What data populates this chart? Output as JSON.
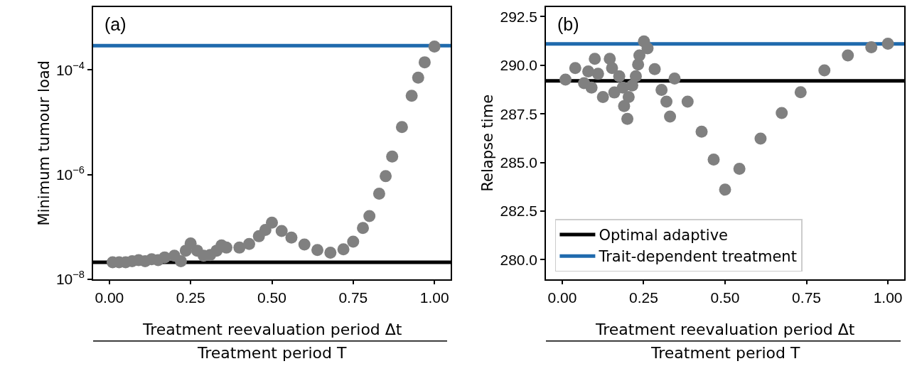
{
  "chart_data": [
    {
      "type": "scatter",
      "title": "(a)",
      "ylabel": "Minimum tumour load",
      "xlabel": "Treatment reevaluation period Δt\nTreatment period T",
      "log": "y",
      "marker": "circle",
      "legend": false,
      "x": [
        0.01,
        0.03,
        0.05,
        0.07,
        0.09,
        0.11,
        0.13,
        0.15,
        0.17,
        0.2,
        0.22,
        0.235,
        0.25,
        0.27,
        0.29,
        0.31,
        0.33,
        0.345,
        0.36,
        0.4,
        0.43,
        0.46,
        0.48,
        0.5,
        0.53,
        0.56,
        0.6,
        0.64,
        0.68,
        0.72,
        0.75,
        0.78,
        0.8,
        0.83,
        0.85,
        0.87,
        0.9,
        0.93,
        0.95,
        0.97,
        1.0
      ],
      "series": [
        {
          "color": "#808080",
          "values": [
            2.1e-08,
            2.1e-08,
            2.1e-08,
            2.2e-08,
            2.3e-08,
            2.2e-08,
            2.4e-08,
            2.3e-08,
            2.6e-08,
            2.8e-08,
            2.2e-08,
            3.5e-08,
            4.8e-08,
            3.5e-08,
            2.8e-08,
            2.9e-08,
            3.5e-08,
            4.4e-08,
            4e-08,
            4e-08,
            4.7e-08,
            6.6e-08,
            8.7e-08,
            1.2e-07,
            8.3e-08,
            6.2e-08,
            4.6e-08,
            3.6e-08,
            3.2e-08,
            3.7e-08,
            5.2e-08,
            9.5e-08,
            1.6e-07,
            4.3e-07,
            9.3e-07,
            2.2e-06,
            8.1e-06,
            3.2e-05,
            7.1e-05,
            0.00014,
            0.00028
          ]
        }
      ],
      "ref_lines": [
        {
          "axis": "y",
          "value": 2.1e-08,
          "color": "#000000"
        },
        {
          "axis": "y",
          "value": 0.00029,
          "color": "#1f6aad"
        }
      ],
      "xlim": [
        -0.05,
        1.05
      ],
      "xticks": [
        {
          "value": 0,
          "label": "0.00"
        },
        {
          "value": 0.25,
          "label": "0.25"
        },
        {
          "value": 0.5,
          "label": "0.50"
        },
        {
          "value": 0.75,
          "label": "0.75"
        },
        {
          "value": 1,
          "label": "1.00"
        }
      ],
      "ylim": [
        1e-08,
        0.0016
      ],
      "yticks": [
        {
          "value": 1e-08,
          "label": "10$^{−8}$"
        },
        {
          "value": 1e-06,
          "label": "10$^{−6}$"
        },
        {
          "value": 0.0001,
          "label": "10$^{−4}$"
        }
      ]
    },
    {
      "type": "scatter",
      "title": "(b)",
      "ylabel": "Relapse time",
      "xlabel": "Treatment reevaluation period Δt\nTreatment period T",
      "marker": "circle",
      "legend": "bottom left",
      "x": [
        0.01,
        0.04,
        0.067,
        0.08,
        0.09,
        0.1,
        0.11,
        0.125,
        0.146,
        0.153,
        0.16,
        0.175,
        0.186,
        0.19,
        0.2,
        0.204,
        0.215,
        0.226,
        0.233,
        0.237,
        0.251,
        0.262,
        0.284,
        0.305,
        0.32,
        0.331,
        0.345,
        0.385,
        0.428,
        0.465,
        0.5,
        0.544,
        0.609,
        0.674,
        0.732,
        0.805,
        0.877,
        0.949,
        1.0
      ],
      "series": [
        {
          "color": "#808080",
          "values": [
            289.26,
            289.86,
            289.08,
            289.68,
            288.85,
            290.33,
            289.56,
            288.37,
            290.33,
            289.86,
            288.6,
            289.44,
            288.85,
            287.9,
            287.24,
            288.37,
            288.96,
            289.44,
            290.04,
            290.51,
            291.23,
            290.87,
            289.8,
            288.73,
            288.13,
            287.36,
            289.32,
            288.13,
            286.58,
            285.15,
            283.6,
            284.67,
            286.23,
            287.54,
            288.61,
            289.74,
            290.51,
            290.93,
            291.11
          ]
        }
      ],
      "ref_lines": [
        {
          "axis": "y",
          "value": 289.2,
          "color": "#000000",
          "label": "Optimal adaptive"
        },
        {
          "axis": "y",
          "value": 291.1,
          "color": "#1f6aad",
          "label": "Trait-dependent treatment"
        }
      ],
      "xlim": [
        -0.05,
        1.05
      ],
      "xticks": [
        {
          "value": 0,
          "label": "0.00"
        },
        {
          "value": 0.25,
          "label": "0.25"
        },
        {
          "value": 0.5,
          "label": "0.50"
        },
        {
          "value": 0.75,
          "label": "0.75"
        },
        {
          "value": 1,
          "label": "1.00"
        }
      ],
      "ylim": [
        279.0,
        293.0
      ],
      "yticks": [
        {
          "value": 280,
          "label": "280.0"
        },
        282.5,
        {
          "value": 285,
          "label": "285.0"
        },
        287.5,
        {
          "value": 290,
          "label": "290.0"
        },
        292.5
      ]
    }
  ]
}
